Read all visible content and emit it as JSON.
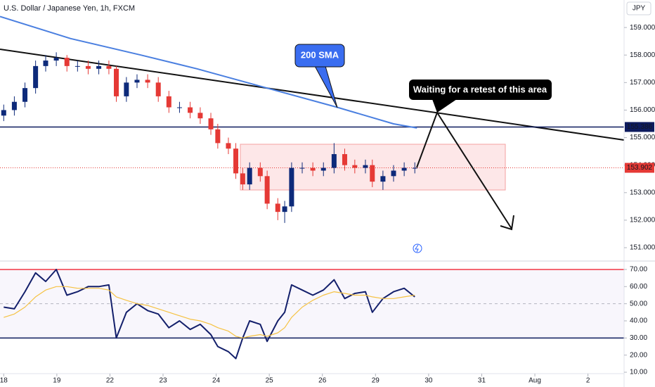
{
  "chart_data": [
    {
      "type": "candlestick",
      "title": "U.S. Dollar / Japanese Yen, 1h, FXCM",
      "currency": "JPY",
      "annotations": [
        "Waiting for a retest of this area"
      ],
      "xlim": [
        -0.07,
        11.68
      ],
      "ylim": [
        150.54,
        160.0
      ],
      "yticks": [
        {
          "value": 151,
          "label": "151.000"
        },
        {
          "value": 152,
          "label": "152.000"
        },
        {
          "value": 153,
          "label": "153.000"
        },
        {
          "value": 154,
          "label": "154.000"
        },
        {
          "value": 155,
          "label": "155.000"
        },
        {
          "value": 156,
          "label": "156.000"
        },
        {
          "value": 157,
          "label": "157.000"
        },
        {
          "value": 158,
          "label": "158.000"
        },
        {
          "value": 159,
          "label": "159.000"
        }
      ],
      "up_color": "#0d2a7a",
      "down_color": "#e53935",
      "x": [
        0,
        0.2,
        0.4,
        0.6,
        0.79,
        0.99,
        1.19,
        1.39,
        1.59,
        1.79,
        1.98,
        2.12,
        2.31,
        2.51,
        2.71,
        2.91,
        3.11,
        3.31,
        3.51,
        3.7,
        3.9,
        4.03,
        4.23,
        4.37,
        4.5,
        4.63,
        4.83,
        4.96,
        5.16,
        5.29,
        5.42,
        5.62,
        5.82,
        6.02,
        6.22,
        6.42,
        6.61,
        6.81,
        6.94,
        7.14,
        7.34,
        7.54,
        7.74
      ],
      "open": [
        155.8,
        156.0,
        156.3,
        156.8,
        157.6,
        157.8,
        157.9,
        157.6,
        157.6,
        157.5,
        157.6,
        157.5,
        156.5,
        157.0,
        157.1,
        157.0,
        156.5,
        156.1,
        156.1,
        155.9,
        155.7,
        155.3,
        154.8,
        154.6,
        153.7,
        153.3,
        153.9,
        153.6,
        152.6,
        152.3,
        152.5,
        153.9,
        153.9,
        153.8,
        153.9,
        154.4,
        154.0,
        153.9,
        154.0,
        153.4,
        153.6,
        153.8,
        153.9
      ],
      "high": [
        156.2,
        156.5,
        157.0,
        157.8,
        158.0,
        158.1,
        158.0,
        157.8,
        157.8,
        157.8,
        157.8,
        157.6,
        157.2,
        157.3,
        157.3,
        157.2,
        156.7,
        156.3,
        156.3,
        156.1,
        155.9,
        155.5,
        155.0,
        154.8,
        153.9,
        154.1,
        154.1,
        153.8,
        152.8,
        152.7,
        154.1,
        154.1,
        154.1,
        154.1,
        154.8,
        154.6,
        154.2,
        154.2,
        154.2,
        153.8,
        154.0,
        154.1,
        154.1
      ],
      "low": [
        155.6,
        155.8,
        156.1,
        156.6,
        157.4,
        157.6,
        157.4,
        157.4,
        157.3,
        157.3,
        157.3,
        156.3,
        156.3,
        156.8,
        156.8,
        156.3,
        155.9,
        155.9,
        155.7,
        155.5,
        155.1,
        154.6,
        154.4,
        153.5,
        153.1,
        153.1,
        153.4,
        152.4,
        152.0,
        151.9,
        152.3,
        153.7,
        153.6,
        153.6,
        153.7,
        153.8,
        153.7,
        153.7,
        153.2,
        153.1,
        153.4,
        153.6,
        153.7
      ],
      "close": [
        156.0,
        156.3,
        156.8,
        157.6,
        157.8,
        157.9,
        157.6,
        157.6,
        157.5,
        157.6,
        157.5,
        156.5,
        157.0,
        157.1,
        157.0,
        156.5,
        156.1,
        156.1,
        155.9,
        155.7,
        155.3,
        154.8,
        154.6,
        153.7,
        153.3,
        153.9,
        153.6,
        152.6,
        152.3,
        152.5,
        153.9,
        153.9,
        153.8,
        153.9,
        154.4,
        154.0,
        153.9,
        154.0,
        153.4,
        153.6,
        153.8,
        153.9,
        153.9
      ],
      "series": [
        {
          "name": "200 SMA",
          "color": "#4a7fe0",
          "x": [
            -0.07,
            1.26,
            2.58,
            3.64,
            4.96,
            6.28,
            7.34,
            7.78
          ],
          "values": [
            159.4,
            158.6,
            158.0,
            157.5,
            156.8,
            156.1,
            155.5,
            155.35
          ]
        }
      ],
      "price_lines": [
        155.386,
        153.902
      ],
      "price_line_colors": [
        "#0d1b5e",
        "#e53935"
      ]
    },
    {
      "type": "line",
      "xlim": [
        -0.07,
        11.68
      ],
      "ylim": [
        9.6,
        74.5
      ],
      "yticks": [
        {
          "value": 10,
          "label": "10.00"
        },
        {
          "value": 20,
          "label": "20.00"
        },
        {
          "value": 30,
          "label": "30.00"
        },
        {
          "value": 40,
          "label": "40.00"
        },
        {
          "value": 50,
          "label": "50.00"
        },
        {
          "value": 60,
          "label": "60.00"
        },
        {
          "value": 70,
          "label": "70.00"
        }
      ],
      "xticks": [
        {
          "value": 0,
          "label": "18"
        },
        {
          "value": 1,
          "label": "19"
        },
        {
          "value": 2,
          "label": "22"
        },
        {
          "value": 3,
          "label": "23"
        },
        {
          "value": 4,
          "label": "24"
        },
        {
          "value": 5,
          "label": "25"
        },
        {
          "value": 6,
          "label": "26"
        },
        {
          "value": 7,
          "label": "29"
        },
        {
          "value": 8,
          "label": "30"
        },
        {
          "value": 9,
          "label": "31"
        },
        {
          "value": 10,
          "label": "Aug"
        },
        {
          "value": 11,
          "label": "2"
        }
      ],
      "levels": [
        70,
        50,
        30
      ],
      "level_colors": [
        "#f23645",
        "#b2b5be",
        "#0d1b5e"
      ],
      "x": [
        0,
        0.2,
        0.4,
        0.6,
        0.79,
        0.99,
        1.19,
        1.39,
        1.59,
        1.79,
        1.98,
        2.12,
        2.31,
        2.51,
        2.71,
        2.91,
        3.11,
        3.31,
        3.51,
        3.7,
        3.9,
        4.03,
        4.23,
        4.37,
        4.5,
        4.63,
        4.83,
        4.96,
        5.16,
        5.29,
        5.42,
        5.62,
        5.82,
        6.02,
        6.22,
        6.42,
        6.61,
        6.81,
        6.94,
        7.14,
        7.34,
        7.54,
        7.74
      ],
      "series": [
        {
          "color": "#131f6b",
          "values": [
            48,
            47,
            57,
            68,
            63,
            70,
            55,
            57,
            60,
            60,
            61,
            30,
            45,
            50,
            46,
            44,
            36,
            40,
            35,
            38,
            32,
            25,
            22,
            18,
            30,
            40,
            38,
            28,
            40,
            45,
            61,
            58,
            55,
            58,
            64,
            53,
            56,
            57,
            45,
            53,
            57,
            59,
            54
          ]
        },
        {
          "color": "#f5c242",
          "values": [
            42,
            44,
            48,
            54,
            58,
            60,
            60,
            59,
            59,
            59,
            58,
            54,
            52,
            50,
            49,
            47,
            45,
            43,
            41,
            40,
            38,
            36,
            34,
            31,
            30,
            31,
            32,
            31,
            33,
            36,
            42,
            48,
            52,
            55,
            57,
            56,
            55,
            55,
            54,
            53,
            53,
            54,
            55
          ]
        }
      ]
    }
  ]
}
